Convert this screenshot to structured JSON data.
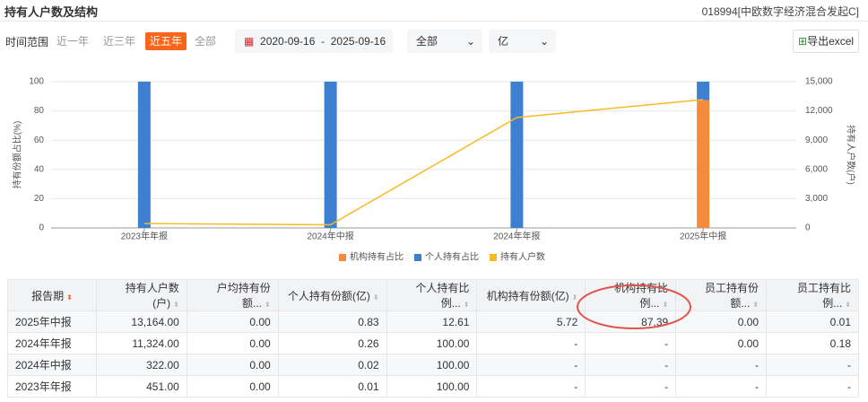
{
  "header": {
    "title": "持有人户数及结构",
    "fund": "018994[中欧数字经济混合发起C]"
  },
  "filters": {
    "label": "时间范围",
    "ranges": [
      "近一年",
      "近三年",
      "近五年",
      "全部"
    ],
    "active_range": 2,
    "date_start": "2020-09-16",
    "date_sep": "-",
    "date_end": "2025-09-16",
    "select1": "全部",
    "select2": "亿",
    "export": "导出excel"
  },
  "chart_data": {
    "type": "bar",
    "stacked": true,
    "categories": [
      "2023年年报",
      "2024年中报",
      "2024年年报",
      "2025年中报"
    ],
    "series": [
      {
        "name": "机构持有占比",
        "color": "#f58a3b",
        "values": [
          null,
          null,
          null,
          87.39
        ]
      },
      {
        "name": "个人持有占比",
        "color": "#3f7fd0",
        "values": [
          100,
          100,
          100,
          12.61
        ]
      },
      {
        "name": "持有人户数",
        "color": "#f7bb26",
        "type": "line",
        "axis": "y2",
        "values": [
          451,
          322,
          11324,
          13164
        ]
      }
    ],
    "ylabel": "持有份额占比(%)",
    "y2label": "持有人户数(户)",
    "ylim": [
      0,
      100
    ],
    "yticks": [
      0,
      20,
      40,
      60,
      80,
      100
    ],
    "y2lim": [
      0,
      15000
    ],
    "y2ticks": [
      0,
      {
        "value": 3000,
        "label": "3,000"
      },
      {
        "value": 6000,
        "label": "6,000"
      },
      {
        "value": 9000,
        "label": "9,000"
      },
      {
        "value": 12000,
        "label": "12,000"
      },
      {
        "value": 15000,
        "label": "15,000"
      }
    ],
    "grid": true,
    "legend": "bottom"
  },
  "table": {
    "columns": [
      "报告期",
      "持有人户数(户)",
      "户均持有份额...",
      "个人持有份额(亿)",
      "个人持有比例...",
      "机构持有份额(亿)",
      "机构持有比例...",
      "员工持有份额...",
      "员工持有比例..."
    ],
    "rows": [
      [
        "2025年中报",
        "13,164.00",
        "0.00",
        "0.83",
        "12.61",
        "5.72",
        "87.39",
        "0.00",
        "0.01"
      ],
      [
        "2024年年报",
        "11,324.00",
        "0.00",
        "0.26",
        "100.00",
        "-",
        "-",
        "0.00",
        "0.18"
      ],
      [
        "2024年中报",
        "322.00",
        "0.00",
        "0.02",
        "100.00",
        "-",
        "-",
        "-",
        "-"
      ],
      [
        "2023年年报",
        "451.00",
        "0.00",
        "0.01",
        "100.00",
        "-",
        "-",
        "-",
        "-"
      ]
    ]
  }
}
